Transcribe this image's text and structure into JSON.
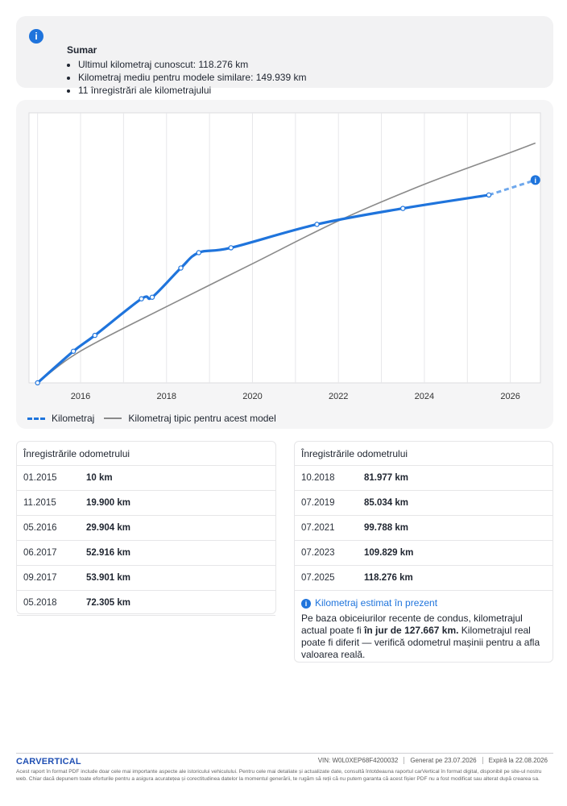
{
  "summary": {
    "title": "Sumar",
    "items": [
      "Ultimul kilometraj cunoscut: 118.276 km",
      "Kilometraj mediu pentru modele similare: 149.939 km",
      "11 înregistrări ale kilometrajului"
    ]
  },
  "chart_data": {
    "type": "line",
    "x_ticks": [
      "2016",
      "2018",
      "2020",
      "2022",
      "2024",
      "2026"
    ],
    "xlim": [
      2014.8,
      2026.7
    ],
    "ylim": [
      0,
      170000
    ],
    "grid": true,
    "legend_placement": "bottom-left",
    "series": [
      {
        "name": "Kilometraj",
        "color": "#1f74dc",
        "points": [
          {
            "x": "01.2015",
            "y": 10
          },
          {
            "x": "11.2015",
            "y": 19900
          },
          {
            "x": "05.2016",
            "y": 29904
          },
          {
            "x": "06.2017",
            "y": 52916
          },
          {
            "x": "09.2017",
            "y": 53901
          },
          {
            "x": "05.2018",
            "y": 72305
          },
          {
            "x": "10.2018",
            "y": 81977
          },
          {
            "x": "07.2019",
            "y": 85034
          },
          {
            "x": "07.2021",
            "y": 99788
          },
          {
            "x": "07.2023",
            "y": 109829
          },
          {
            "x": "07.2025",
            "y": 118276
          }
        ],
        "estimate": {
          "x": "08.2026",
          "y": 127667
        }
      },
      {
        "name": "Kilometraj tipic pentru acest model",
        "color": "#8a8a8a",
        "points": [
          {
            "x": "01.2015",
            "y": 0
          },
          {
            "x": "01.2016",
            "y": 20000
          },
          {
            "x": "01.2018",
            "y": 48000
          },
          {
            "x": "01.2020",
            "y": 75000
          },
          {
            "x": "01.2022",
            "y": 102000
          },
          {
            "x": "01.2024",
            "y": 125000
          },
          {
            "x": "01.2026",
            "y": 145000
          },
          {
            "x": "08.2026",
            "y": 151000
          }
        ]
      }
    ]
  },
  "legend": {
    "mileage": "Kilometraj",
    "typical": "Kilometraj tipic pentru acest model"
  },
  "records": {
    "heading": "Înregistrările odometrului",
    "left": [
      {
        "date": "01.2015",
        "km": "10 km"
      },
      {
        "date": "11.2015",
        "km": "19.900 km"
      },
      {
        "date": "05.2016",
        "km": "29.904 km"
      },
      {
        "date": "06.2017",
        "km": "52.916 km"
      },
      {
        "date": "09.2017",
        "km": "53.901 km"
      },
      {
        "date": "05.2018",
        "km": "72.305 km"
      }
    ],
    "right": [
      {
        "date": "10.2018",
        "km": "81.977 km"
      },
      {
        "date": "07.2019",
        "km": "85.034 km"
      },
      {
        "date": "07.2021",
        "km": "99.788 km"
      },
      {
        "date": "07.2023",
        "km": "109.829 km"
      },
      {
        "date": "07.2025",
        "km": "118.276 km"
      }
    ]
  },
  "estimate": {
    "title": "Kilometraj estimat în prezent",
    "text_before": "Pe baza obiceiurilor recente de condus, kilometrajul actual poate fi ",
    "text_bold": "în jur de 127.667 km.",
    "text_after": " Kilometrajul real poate fi diferit — verifică odometrul mașinii pentru a afla valoarea reală."
  },
  "footer": {
    "logo": "CARVERTICAL",
    "vin": "VIN:  W0L0XEP68F4200032",
    "generated": "Generat pe  23.07.2026",
    "expires": "Expiră la  22.08.2026",
    "disclaimer": "Acest raport în format PDF include doar cele mai importante aspecte ale istoricului vehiculului. Pentru cele mai detaliate și actualizate date, consultă întotdeauna raportul carVertical în format digital, disponibil pe site-ul nostru web. Chiar dacă depunem toate eforturile pentru a asigura acuratețea și corectitudinea datelor la momentul generării, te rugăm să reții că nu putem garanta că acest fișier PDF nu a fost modificat sau alterat după crearea sa."
  }
}
